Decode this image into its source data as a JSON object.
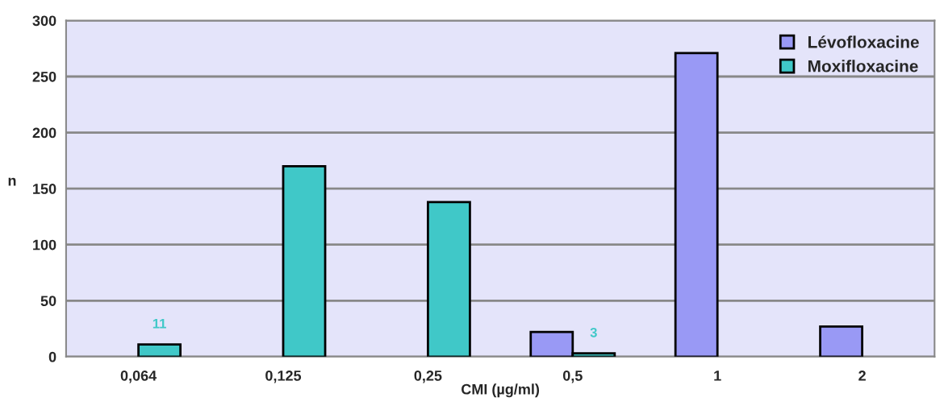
{
  "chart_data": {
    "type": "bar",
    "xlabel": "CMI (µg/ml)",
    "ylabel": "n",
    "categories": [
      "0,064",
      "0,125",
      "0,25",
      "0,5",
      "1",
      "2"
    ],
    "series": [
      {
        "name": "Lévofloxacine",
        "color": "#9999f5",
        "values": [
          null,
          null,
          null,
          22,
          271,
          27
        ]
      },
      {
        "name": "Moxifloxacine",
        "color": "#40c8c8",
        "values": [
          11,
          170,
          138,
          3,
          null,
          null
        ],
        "value_labels": [
          "11",
          null,
          null,
          "3",
          null,
          null
        ]
      }
    ],
    "ylim": [
      0,
      300
    ],
    "yticks": [
      0,
      50,
      100,
      150,
      200,
      250,
      300
    ],
    "grid": "y",
    "legend": "top right"
  }
}
